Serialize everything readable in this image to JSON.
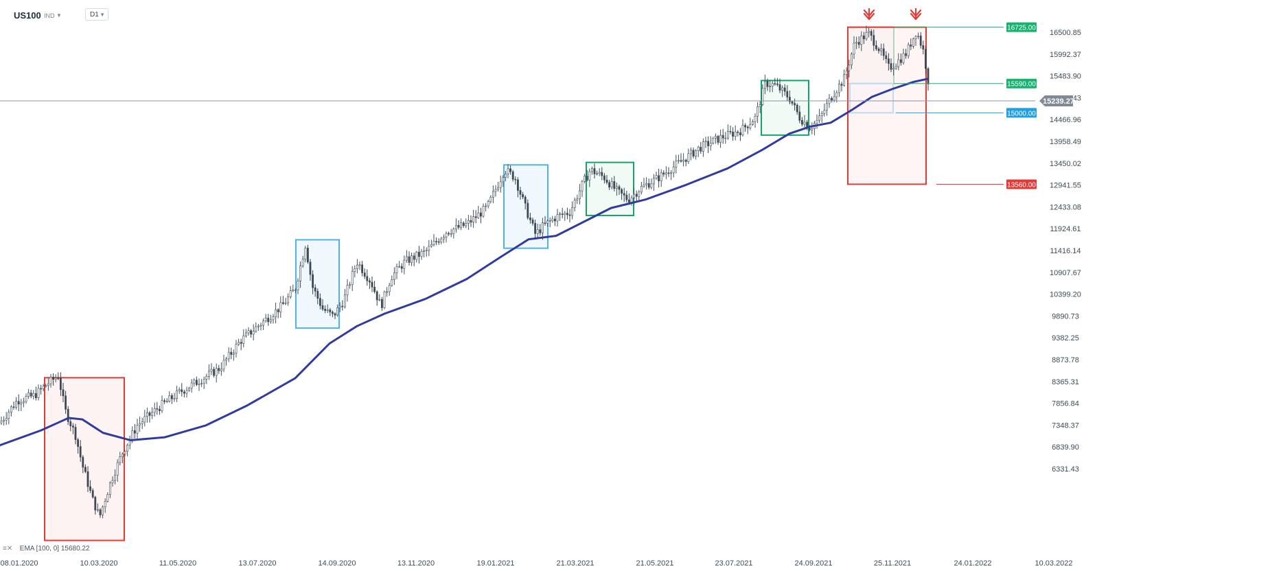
{
  "header": {
    "symbol": "US100",
    "exchange": "IND",
    "timeframe": "D1"
  },
  "chart_data": {
    "type": "candlestick",
    "y_axis_ticks": [
      "16500.85",
      "15992.37",
      "15483.90",
      "14975.43",
      "14466.96",
      "13958.49",
      "13450.02",
      "12941.55",
      "12433.08",
      "11924.61",
      "11416.14",
      "10907.67",
      "10399.20",
      "9890.73",
      "9382.25",
      "8873.78",
      "8365.31",
      "7856.84",
      "7348.37",
      "6839.90",
      "6331.43"
    ],
    "x_axis_ticks": [
      "08.01.2020",
      "10.03.2020",
      "11.05.2020",
      "13.07.2020",
      "14.09.2020",
      "13.11.2020",
      "19.01.2021",
      "21.03.2021",
      "21.05.2021",
      "23.07.2021",
      "24.09.2021",
      "25.11.2021",
      "24.01.2022",
      "10.03.2022"
    ],
    "current_price": "15239.27",
    "ylim": [
      6331.43,
      16720
    ],
    "price_levels": [
      {
        "label": "16725.00",
        "value": 16725.0,
        "color": "#16b36e"
      },
      {
        "label": "15590.00",
        "value": 15590.0,
        "color": "#16b36e"
      },
      {
        "label": "15000.00",
        "value": 15000.0,
        "color": "#1f9fe6"
      },
      {
        "label": "13560.00",
        "value": 13560.0,
        "color": "#e53935"
      }
    ],
    "ema": {
      "label": "EMA [100, 0]",
      "value": "15680.22",
      "color": "#2f3c9e",
      "points": [
        [
          0,
          8300
        ],
        [
          60,
          8600
        ],
        [
          100,
          8850
        ],
        [
          120,
          8820
        ],
        [
          150,
          8550
        ],
        [
          190,
          8400
        ],
        [
          240,
          8460
        ],
        [
          300,
          8700
        ],
        [
          360,
          9100
        ],
        [
          430,
          9650
        ],
        [
          480,
          10350
        ],
        [
          520,
          10700
        ],
        [
          560,
          10950
        ],
        [
          620,
          11250
        ],
        [
          680,
          11650
        ],
        [
          730,
          12100
        ],
        [
          770,
          12450
        ],
        [
          810,
          12520
        ],
        [
          850,
          12800
        ],
        [
          890,
          13080
        ],
        [
          940,
          13250
        ],
        [
          1000,
          13550
        ],
        [
          1060,
          13880
        ],
        [
          1110,
          14250
        ],
        [
          1150,
          14580
        ],
        [
          1180,
          14720
        ],
        [
          1210,
          14800
        ],
        [
          1240,
          15050
        ],
        [
          1270,
          15320
        ],
        [
          1300,
          15480
        ],
        [
          1330,
          15620
        ],
        [
          1350,
          15680
        ]
      ],
      "ema_tail": [
        15680
      ]
    },
    "price_path": [
      [
        0,
        8750
      ],
      [
        25,
        9200
      ],
      [
        50,
        9300
      ],
      [
        70,
        9550
      ],
      [
        85,
        9700
      ],
      [
        95,
        9000
      ],
      [
        110,
        8500
      ],
      [
        120,
        7900
      ],
      [
        135,
        7200
      ],
      [
        145,
        6850
      ],
      [
        155,
        7300
      ],
      [
        165,
        7700
      ],
      [
        180,
        8200
      ],
      [
        200,
        8700
      ],
      [
        230,
        9050
      ],
      [
        260,
        9350
      ],
      [
        290,
        9600
      ],
      [
        320,
        9850
      ],
      [
        350,
        10400
      ],
      [
        380,
        10750
      ],
      [
        410,
        11100
      ],
      [
        430,
        11450
      ],
      [
        445,
        12350
      ],
      [
        455,
        11500
      ],
      [
        470,
        11050
      ],
      [
        485,
        10900
      ],
      [
        500,
        11200
      ],
      [
        520,
        12000
      ],
      [
        540,
        11600
      ],
      [
        555,
        11100
      ],
      [
        570,
        11700
      ],
      [
        590,
        12000
      ],
      [
        620,
        12200
      ],
      [
        650,
        12600
      ],
      [
        680,
        12750
      ],
      [
        710,
        13100
      ],
      [
        735,
        13850
      ],
      [
        750,
        13700
      ],
      [
        765,
        13100
      ],
      [
        780,
        12550
      ],
      [
        790,
        12700
      ],
      [
        810,
        12900
      ],
      [
        830,
        13000
      ],
      [
        850,
        13600
      ],
      [
        860,
        13850
      ],
      [
        880,
        13700
      ],
      [
        900,
        13400
      ],
      [
        915,
        13250
      ],
      [
        935,
        13500
      ],
      [
        960,
        13700
      ],
      [
        990,
        14000
      ],
      [
        1020,
        14300
      ],
      [
        1050,
        14500
      ],
      [
        1080,
        14650
      ],
      [
        1100,
        14900
      ],
      [
        1115,
        15600
      ],
      [
        1130,
        15550
      ],
      [
        1150,
        15300
      ],
      [
        1165,
        14900
      ],
      [
        1180,
        14700
      ],
      [
        1195,
        14900
      ],
      [
        1210,
        15300
      ],
      [
        1230,
        15700
      ],
      [
        1245,
        16400
      ],
      [
        1265,
        16600
      ],
      [
        1280,
        16300
      ],
      [
        1295,
        15900
      ],
      [
        1305,
        16000
      ],
      [
        1320,
        16200
      ],
      [
        1335,
        16650
      ],
      [
        1345,
        16250
      ],
      [
        1355,
        15400
      ]
    ],
    "zones": [
      {
        "x0": 65,
        "x1": 181,
        "y_top": 9660,
        "y_bot": 6380,
        "color": "#e53935",
        "fill": "#fdecec"
      },
      {
        "x0": 431,
        "x1": 494,
        "y_top": 12440,
        "y_bot": 10660,
        "color": "#4fb3e8",
        "fill": "#e9f5fc"
      },
      {
        "x0": 734,
        "x1": 798,
        "y_top": 13950,
        "y_bot": 12270,
        "color": "#4fb3e8",
        "fill": "#e9f5fc"
      },
      {
        "x0": 854,
        "x1": 923,
        "y_top": 14000,
        "y_bot": 12930,
        "color": "#16a36a",
        "fill": "#e9f7ef"
      },
      {
        "x0": 1109,
        "x1": 1178,
        "y_top": 15650,
        "y_bot": 14550,
        "color": "#16a36a",
        "fill": "#e9f7ef"
      },
      {
        "x0": 1235,
        "x1": 1302,
        "y_top": 16725,
        "y_bot": 15590,
        "color": "#16a36a",
        "fill": "#e9f7ef"
      },
      {
        "x0": 1238,
        "x1": 1301,
        "y_top": 15590,
        "y_bot": 15000,
        "color": "#4fb3e8",
        "fill": "#eef8fd"
      },
      {
        "x0": 1235,
        "x1": 1349,
        "y_top": 16725,
        "y_bot": 13560,
        "color": "#e53935",
        "fill": "#fff0f0"
      }
    ],
    "arrows": [
      {
        "x": 1266,
        "color": "#e53935"
      },
      {
        "x": 1334,
        "color": "#e53935"
      }
    ],
    "horizontal_crosshair": {
      "value": 15239.27,
      "color": "#8a949e"
    },
    "grid": false
  }
}
